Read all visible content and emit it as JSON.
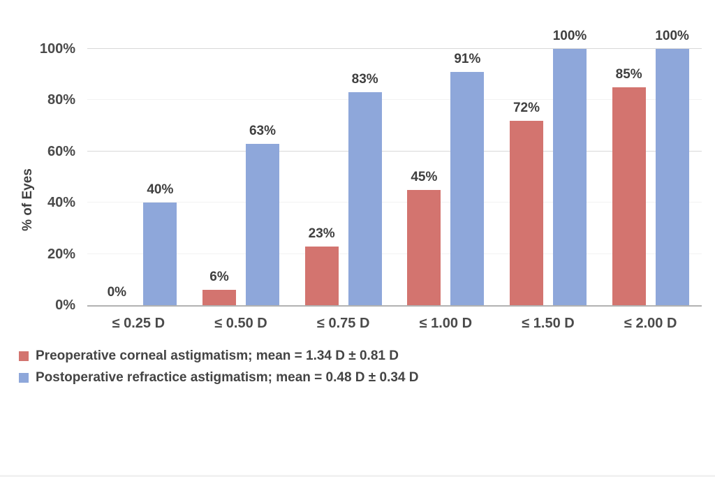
{
  "chart_data": {
    "type": "bar",
    "title": "",
    "categories": [
      "≤ 0.25 D",
      "≤ 0.50 D",
      "≤ 0.75 D",
      "≤ 1.00 D",
      "≤ 1.50 D",
      "≤ 2.00 D"
    ],
    "series": [
      {
        "name": "Preoperative corneal astigmatism; mean = 1.34 D ± 0.81 D",
        "color": "#d3746f",
        "values": [
          0,
          6,
          23,
          45,
          72,
          85
        ],
        "value_labels": [
          "0%",
          "6%",
          "23%",
          "45%",
          "72%",
          "85%"
        ]
      },
      {
        "name": "Postoperative refractice astigmatism; mean = 0.48 D ± 0.34 D",
        "color": "#8ea7da",
        "values": [
          40,
          63,
          83,
          91,
          100,
          100
        ],
        "value_labels": [
          "40%",
          "63%",
          "83%",
          "91%",
          "100%",
          "100%"
        ]
      }
    ],
    "ylabel": "% of Eyes",
    "xlabel": "",
    "yticks": [
      "0%",
      "20%",
      "40%",
      "60%",
      "80%",
      "100%"
    ],
    "ylim": [
      0,
      100
    ],
    "grid": "horizontal",
    "legend_position": "bottom-left",
    "value_suffix": "%"
  }
}
